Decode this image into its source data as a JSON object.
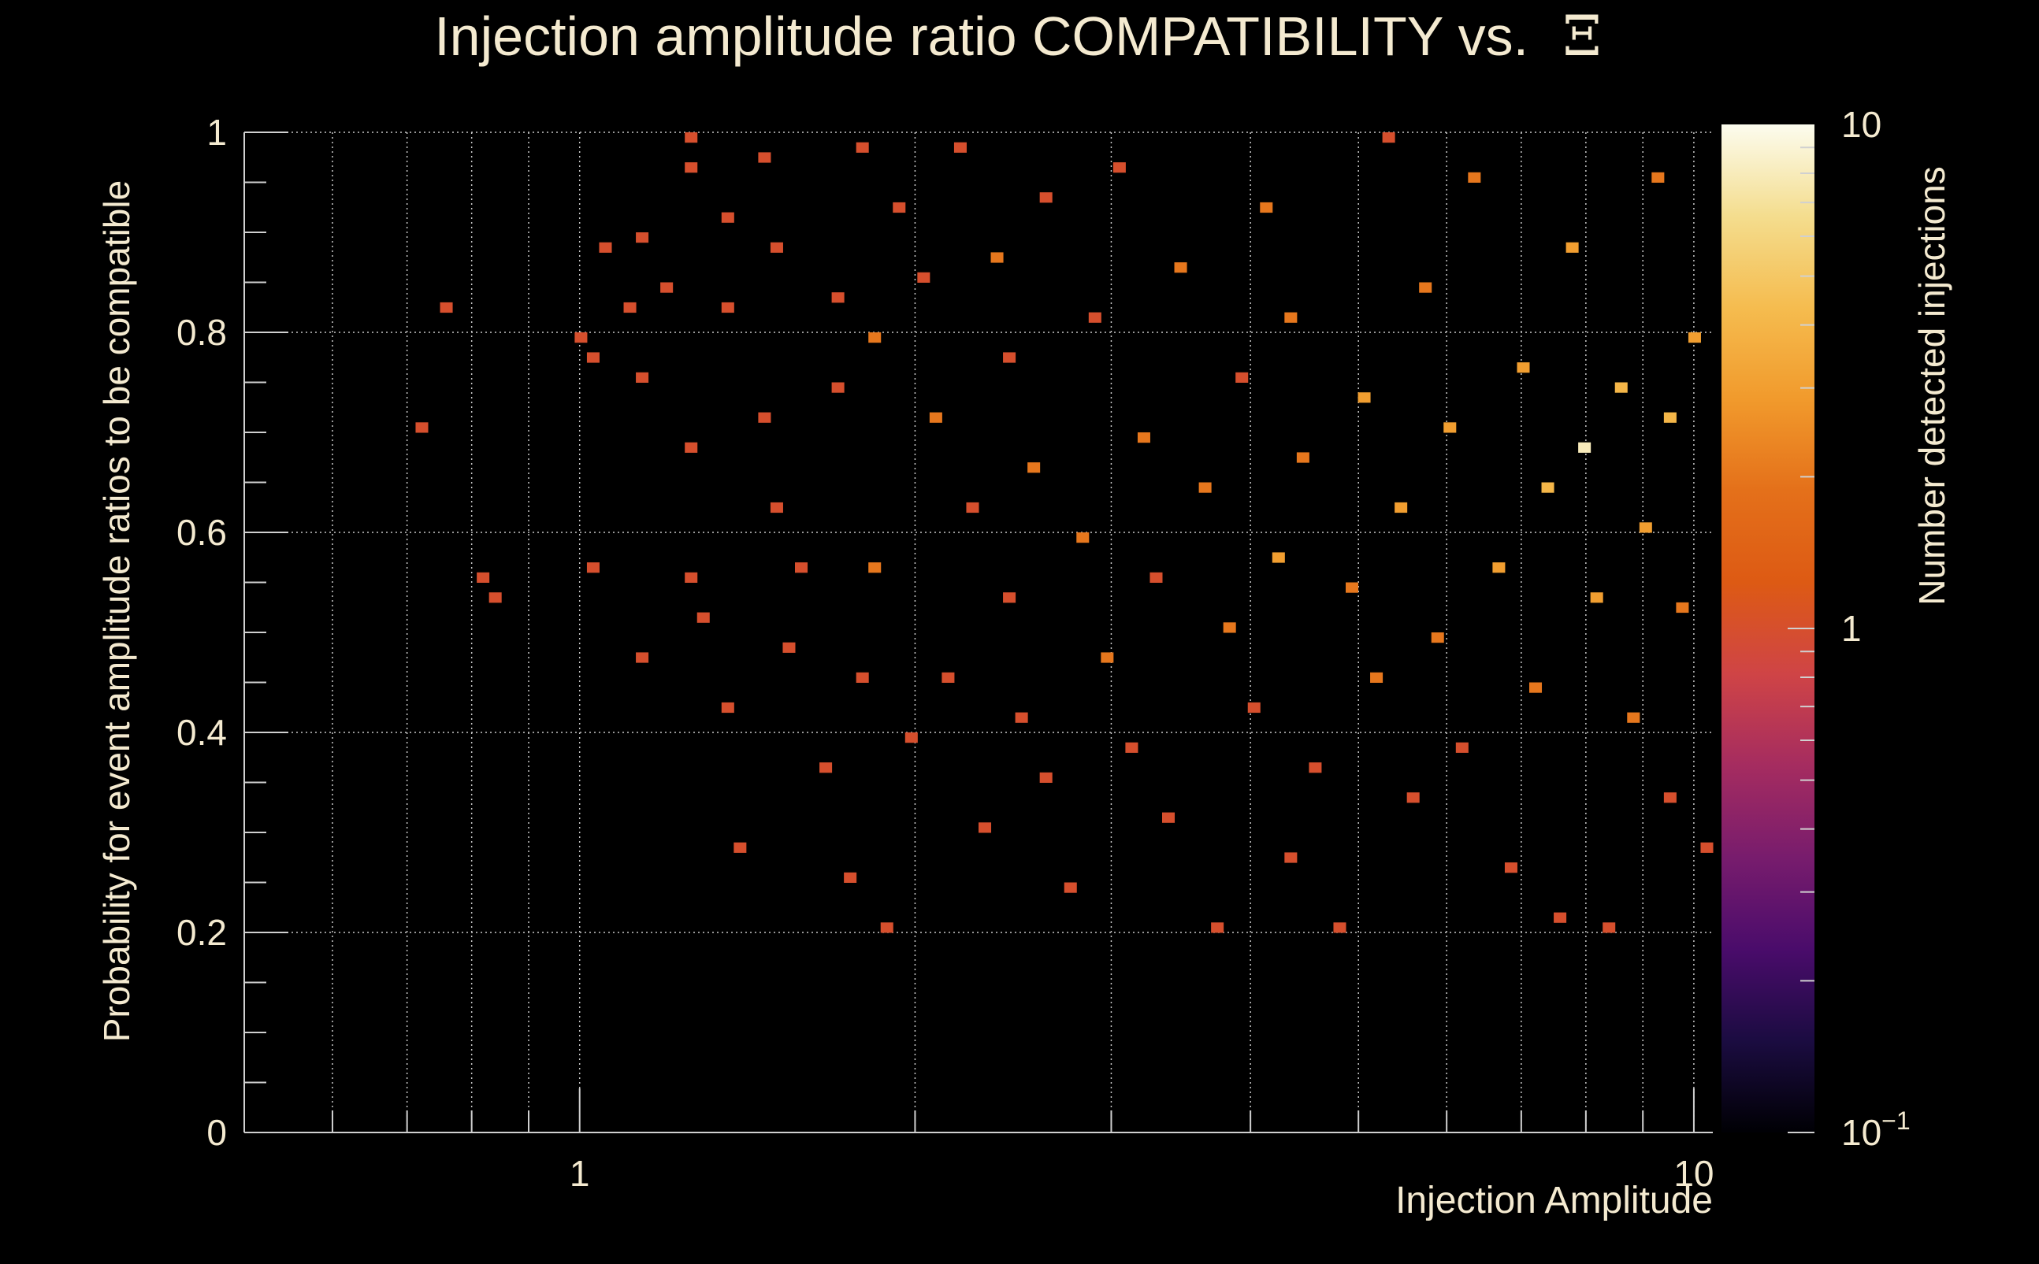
{
  "chart_data": {
    "type": "heatmap",
    "title": "Injection amplitude ratio COMPATIBILITY vs.",
    "title_symbol": "Ξ",
    "xlabel": "Injection Amplitude",
    "ylabel": "Probability for event amplitude ratios to be compatible",
    "zlabel": "Number detected injections",
    "x_scale": "log",
    "xlim": [
      0.5,
      10.4
    ],
    "ylim": [
      0,
      1
    ],
    "zlim": [
      0.1,
      10
    ],
    "z_scale": "log",
    "x_ticks": [
      {
        "value": 1,
        "label": "1"
      },
      {
        "value": 10,
        "label": "10"
      }
    ],
    "y_ticks": [
      {
        "value": 0,
        "label": "0"
      },
      {
        "value": 0.2,
        "label": "0.2"
      },
      {
        "value": 0.4,
        "label": "0.4"
      },
      {
        "value": 0.6,
        "label": "0.6"
      },
      {
        "value": 0.8,
        "label": "0.8"
      },
      {
        "value": 1,
        "label": "1"
      }
    ],
    "z_ticks": [
      {
        "value": 0.1,
        "label": "10",
        "exponent": "−1"
      },
      {
        "value": 1,
        "label": "1",
        "exponent": ""
      },
      {
        "value": 10,
        "label": "10",
        "exponent": ""
      }
    ],
    "grid": true,
    "bins": {
      "nx": 120,
      "ny": 100
    },
    "colorscale": [
      "#000004",
      "#1b0c41",
      "#4a0c6b",
      "#781c6d",
      "#a52c60",
      "#cf4446",
      "#dd5a14",
      "#e4701a",
      "#f19a2c",
      "#f5bc4f",
      "#f4dd8e",
      "#fcfcee"
    ],
    "cells": [
      [
        0.73,
        0.7,
        1
      ],
      [
        0.75,
        0.82,
        1
      ],
      [
        0.81,
        0.55,
        1
      ],
      [
        0.84,
        0.53,
        1
      ],
      [
        1.0,
        0.79,
        1
      ],
      [
        1.03,
        0.77,
        1
      ],
      [
        1.04,
        0.56,
        1
      ],
      [
        1.05,
        0.88,
        1
      ],
      [
        1.1,
        0.82,
        1
      ],
      [
        1.15,
        0.89,
        1
      ],
      [
        1.15,
        0.75,
        1
      ],
      [
        1.15,
        0.47,
        1
      ],
      [
        1.2,
        0.84,
        1
      ],
      [
        1.25,
        0.99,
        1
      ],
      [
        1.25,
        0.96,
        1
      ],
      [
        1.25,
        0.68,
        1
      ],
      [
        1.25,
        0.55,
        1
      ],
      [
        1.3,
        0.51,
        1
      ],
      [
        1.35,
        0.91,
        1
      ],
      [
        1.35,
        0.82,
        1
      ],
      [
        1.35,
        0.42,
        1
      ],
      [
        1.4,
        0.28,
        1
      ],
      [
        1.45,
        0.97,
        1
      ],
      [
        1.45,
        0.71,
        1
      ],
      [
        1.5,
        0.88,
        1
      ],
      [
        1.5,
        0.62,
        1
      ],
      [
        1.55,
        0.48,
        1
      ],
      [
        1.6,
        0.57,
        1
      ],
      [
        1.65,
        0.36,
        1
      ],
      [
        1.7,
        0.83,
        1
      ],
      [
        1.7,
        0.74,
        1
      ],
      [
        1.75,
        0.25,
        1
      ],
      [
        1.8,
        0.98,
        1
      ],
      [
        1.8,
        0.45,
        1
      ],
      [
        1.85,
        0.79,
        2
      ],
      [
        1.85,
        0.57,
        2
      ],
      [
        1.9,
        0.2,
        1
      ],
      [
        1.95,
        0.92,
        1
      ],
      [
        2.0,
        0.39,
        1
      ],
      [
        2.05,
        0.85,
        1
      ],
      [
        2.1,
        0.71,
        2
      ],
      [
        2.15,
        0.45,
        1
      ],
      [
        2.2,
        0.98,
        1
      ],
      [
        2.25,
        0.62,
        1
      ],
      [
        2.3,
        0.3,
        1
      ],
      [
        2.35,
        0.87,
        2
      ],
      [
        2.4,
        0.77,
        1
      ],
      [
        2.45,
        0.53,
        1
      ],
      [
        2.5,
        0.41,
        1
      ],
      [
        2.55,
        0.66,
        2
      ],
      [
        2.6,
        0.93,
        1
      ],
      [
        2.65,
        0.35,
        1
      ],
      [
        2.75,
        0.24,
        1
      ],
      [
        2.8,
        0.59,
        2
      ],
      [
        2.9,
        0.81,
        1
      ],
      [
        3.0,
        0.47,
        2
      ],
      [
        3.05,
        0.96,
        1
      ],
      [
        3.1,
        0.38,
        1
      ],
      [
        3.2,
        0.69,
        2
      ],
      [
        3.3,
        0.55,
        1
      ],
      [
        3.4,
        0.31,
        1
      ],
      [
        3.5,
        0.86,
        2
      ],
      [
        3.6,
        0.64,
        2
      ],
      [
        3.7,
        0.2,
        1
      ],
      [
        3.8,
        0.5,
        2
      ],
      [
        3.9,
        0.75,
        1
      ],
      [
        4.0,
        0.42,
        1
      ],
      [
        4.1,
        0.92,
        2
      ],
      [
        4.2,
        0.58,
        3
      ],
      [
        4.3,
        0.27,
        1
      ],
      [
        4.4,
        0.81,
        2
      ],
      [
        4.5,
        0.67,
        2
      ],
      [
        4.6,
        0.36,
        1
      ],
      [
        4.75,
        0.2,
        1
      ],
      [
        4.9,
        0.54,
        2
      ],
      [
        5.0,
        0.73,
        3
      ],
      [
        5.15,
        0.45,
        2
      ],
      [
        5.3,
        0.99,
        1
      ],
      [
        5.45,
        0.62,
        3
      ],
      [
        5.6,
        0.33,
        1
      ],
      [
        5.75,
        0.84,
        2
      ],
      [
        5.9,
        0.49,
        2
      ],
      [
        6.05,
        0.7,
        3
      ],
      [
        6.2,
        0.38,
        1
      ],
      [
        6.4,
        0.95,
        2
      ],
      [
        6.6,
        0.57,
        3
      ],
      [
        6.8,
        0.26,
        1
      ],
      [
        7.0,
        0.76,
        3
      ],
      [
        7.2,
        0.44,
        2
      ],
      [
        7.4,
        0.64,
        4
      ],
      [
        7.6,
        0.21,
        1
      ],
      [
        7.8,
        0.88,
        3
      ],
      [
        8.0,
        0.68,
        8
      ],
      [
        8.2,
        0.53,
        3
      ],
      [
        8.4,
        0.2,
        1
      ],
      [
        8.6,
        0.74,
        4
      ],
      [
        8.8,
        0.41,
        2
      ],
      [
        9.0,
        0.6,
        3
      ],
      [
        9.2,
        0.95,
        2
      ],
      [
        9.4,
        0.71,
        4
      ],
      [
        9.6,
        0.33,
        1
      ],
      [
        9.8,
        0.52,
        2
      ],
      [
        10.0,
        0.79,
        3
      ],
      [
        10.2,
        0.28,
        1
      ]
    ]
  }
}
